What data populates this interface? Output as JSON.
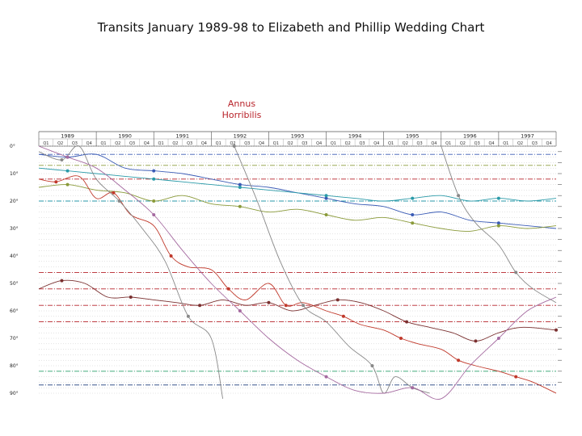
{
  "page": {
    "title": "Transits January 1989-98 to Elizabeth and Phillip Wedding Chart",
    "annotation": {
      "line1": "Annus",
      "line2": "Horribilis"
    }
  },
  "chart_data": {
    "type": "line",
    "title": "Transits January 1989-98 to Elizabeth and Phillip Wedding Chart",
    "x_start": 1989.0,
    "x_end": 1998.0,
    "years": [
      "1989",
      "1990",
      "1991",
      "1992",
      "1993",
      "1994",
      "1995",
      "1996",
      "1997"
    ],
    "quarter_labels": [
      "Q1",
      "Q2",
      "Q3",
      "Q4"
    ],
    "ylabel": "",
    "ylim": [
      0,
      90
    ],
    "yticks": [
      "0°",
      "10°",
      "20°",
      "30°",
      "40°",
      "50°",
      "60°",
      "70°",
      "80°",
      "90°"
    ],
    "annotation": {
      "text": "Annus Horribilis",
      "x": 1992.3
    },
    "reference_lines": [
      {
        "y": 3,
        "color": "#3a5bb5",
        "style": "dashdot"
      },
      {
        "y": 7,
        "color": "#8a9a3a",
        "style": "dashdot"
      },
      {
        "y": 12,
        "color": "#b8232a",
        "style": "dashdot"
      },
      {
        "y": 20,
        "color": "#2a9aa8",
        "style": "dashdot"
      },
      {
        "y": 46,
        "color": "#b8232a",
        "style": "dashdot"
      },
      {
        "y": 52,
        "color": "#b8232a",
        "style": "dashdot"
      },
      {
        "y": 58,
        "color": "#b8232a",
        "style": "dashdot"
      },
      {
        "y": 64,
        "color": "#b8232a",
        "style": "dashdot"
      },
      {
        "y": 82,
        "color": "#2aa06a",
        "style": "dashdot"
      },
      {
        "y": 87,
        "color": "#1a3a7a",
        "style": "dashdot"
      }
    ],
    "series": [
      {
        "color": "#3a5bb5",
        "x": [
          1989.0,
          1989.5,
          1990.0,
          1990.5,
          1991.0,
          1991.5,
          1992.0,
          1992.5,
          1993.0,
          1993.5,
          1994.0,
          1994.5,
          1995.0,
          1995.5,
          1996.0,
          1996.5,
          1997.0,
          1997.5,
          1998.0
        ],
        "y": [
          3,
          4,
          3,
          8,
          9,
          10,
          12,
          14,
          15,
          17,
          19,
          21,
          22,
          25,
          24,
          27,
          28,
          29,
          30
        ]
      },
      {
        "color": "#2a9aa8",
        "x": [
          1989.0,
          1989.5,
          1990.0,
          1990.5,
          1991.0,
          1991.5,
          1992.0,
          1992.5,
          1993.0,
          1993.5,
          1994.0,
          1994.5,
          1995.0,
          1995.5,
          1996.0,
          1996.5,
          1997.0,
          1997.5,
          1998.0
        ],
        "y": [
          8,
          9,
          10,
          11,
          12,
          13,
          14,
          15,
          16,
          17,
          18,
          19,
          20,
          19,
          18,
          20,
          19,
          20,
          19
        ]
      },
      {
        "color": "#8a9a3a",
        "x": [
          1989.0,
          1989.5,
          1990.0,
          1990.5,
          1991.0,
          1991.5,
          1992.0,
          1992.5,
          1993.0,
          1993.5,
          1994.0,
          1994.5,
          1995.0,
          1995.5,
          1996.0,
          1996.5,
          1997.0,
          1997.5,
          1998.0
        ],
        "y": [
          15,
          14,
          16,
          17,
          20,
          18,
          21,
          22,
          24,
          23,
          25,
          27,
          26,
          28,
          30,
          31,
          29,
          30,
          29
        ]
      },
      {
        "color": "#7a3030",
        "x": [
          1989.0,
          1989.4,
          1989.8,
          1990.2,
          1990.6,
          1991.0,
          1991.4,
          1991.8,
          1992.2,
          1992.6,
          1993.0,
          1993.4,
          1993.8,
          1994.2,
          1994.6,
          1995.0,
          1995.4,
          1995.8,
          1996.2,
          1996.6,
          1997.0,
          1997.4,
          1998.0
        ],
        "y": [
          52,
          49,
          50,
          55,
          55,
          56,
          57,
          58,
          56,
          58,
          57,
          60,
          58,
          56,
          57,
          60,
          64,
          66,
          68,
          71,
          68,
          66,
          67
        ]
      },
      {
        "color": "#c0392b",
        "x": [
          1989.0,
          1989.3,
          1989.7,
          1990.0,
          1990.3,
          1990.6,
          1991.0,
          1991.3,
          1991.6,
          1992.0,
          1992.3,
          1992.6,
          1993.0,
          1993.3,
          1993.6,
          1994.0,
          1994.3,
          1994.6,
          1995.0,
          1995.3,
          1995.6,
          1996.0,
          1996.3,
          1996.6,
          1997.0,
          1997.3,
          1997.6,
          1998.0
        ],
        "y": [
          12,
          13,
          11,
          19,
          17,
          25,
          29,
          40,
          44,
          45,
          52,
          56,
          50,
          58,
          57,
          60,
          62,
          65,
          67,
          70,
          72,
          74,
          78,
          80,
          82,
          84,
          86,
          90
        ]
      },
      {
        "color": "#888888",
        "x": [
          1989.0,
          1989.4,
          1989.7,
          1990.0,
          1990.4,
          1990.8,
          1991.2,
          1991.6,
          1992.0,
          1992.2,
          1992.4,
          1992.8,
          1993.2,
          1993.6,
          1994.0,
          1994.4,
          1994.8,
          1995.0,
          1995.2,
          1995.5,
          1995.8,
          1996.0,
          1996.3,
          1996.6,
          1997.0,
          1997.3,
          1997.6,
          1998.0
        ],
        "y": [
          2,
          5,
          0,
          12,
          20,
          30,
          42,
          62,
          70,
          92,
          0,
          20,
          42,
          58,
          64,
          73,
          80,
          90,
          84,
          88,
          90,
          0,
          18,
          28,
          36,
          46,
          52,
          57
        ]
      },
      {
        "color": "#a56aa0",
        "x": [
          1989.0,
          1989.5,
          1990.0,
          1990.5,
          1991.0,
          1991.5,
          1992.0,
          1992.5,
          1993.0,
          1993.5,
          1994.0,
          1994.5,
          1995.0,
          1995.5,
          1996.0,
          1996.5,
          1997.0,
          1997.5,
          1998.0
        ],
        "y": [
          0,
          4,
          8,
          16,
          25,
          38,
          50,
          60,
          70,
          78,
          84,
          89,
          90,
          88,
          92,
          80,
          70,
          60,
          55
        ]
      }
    ]
  }
}
